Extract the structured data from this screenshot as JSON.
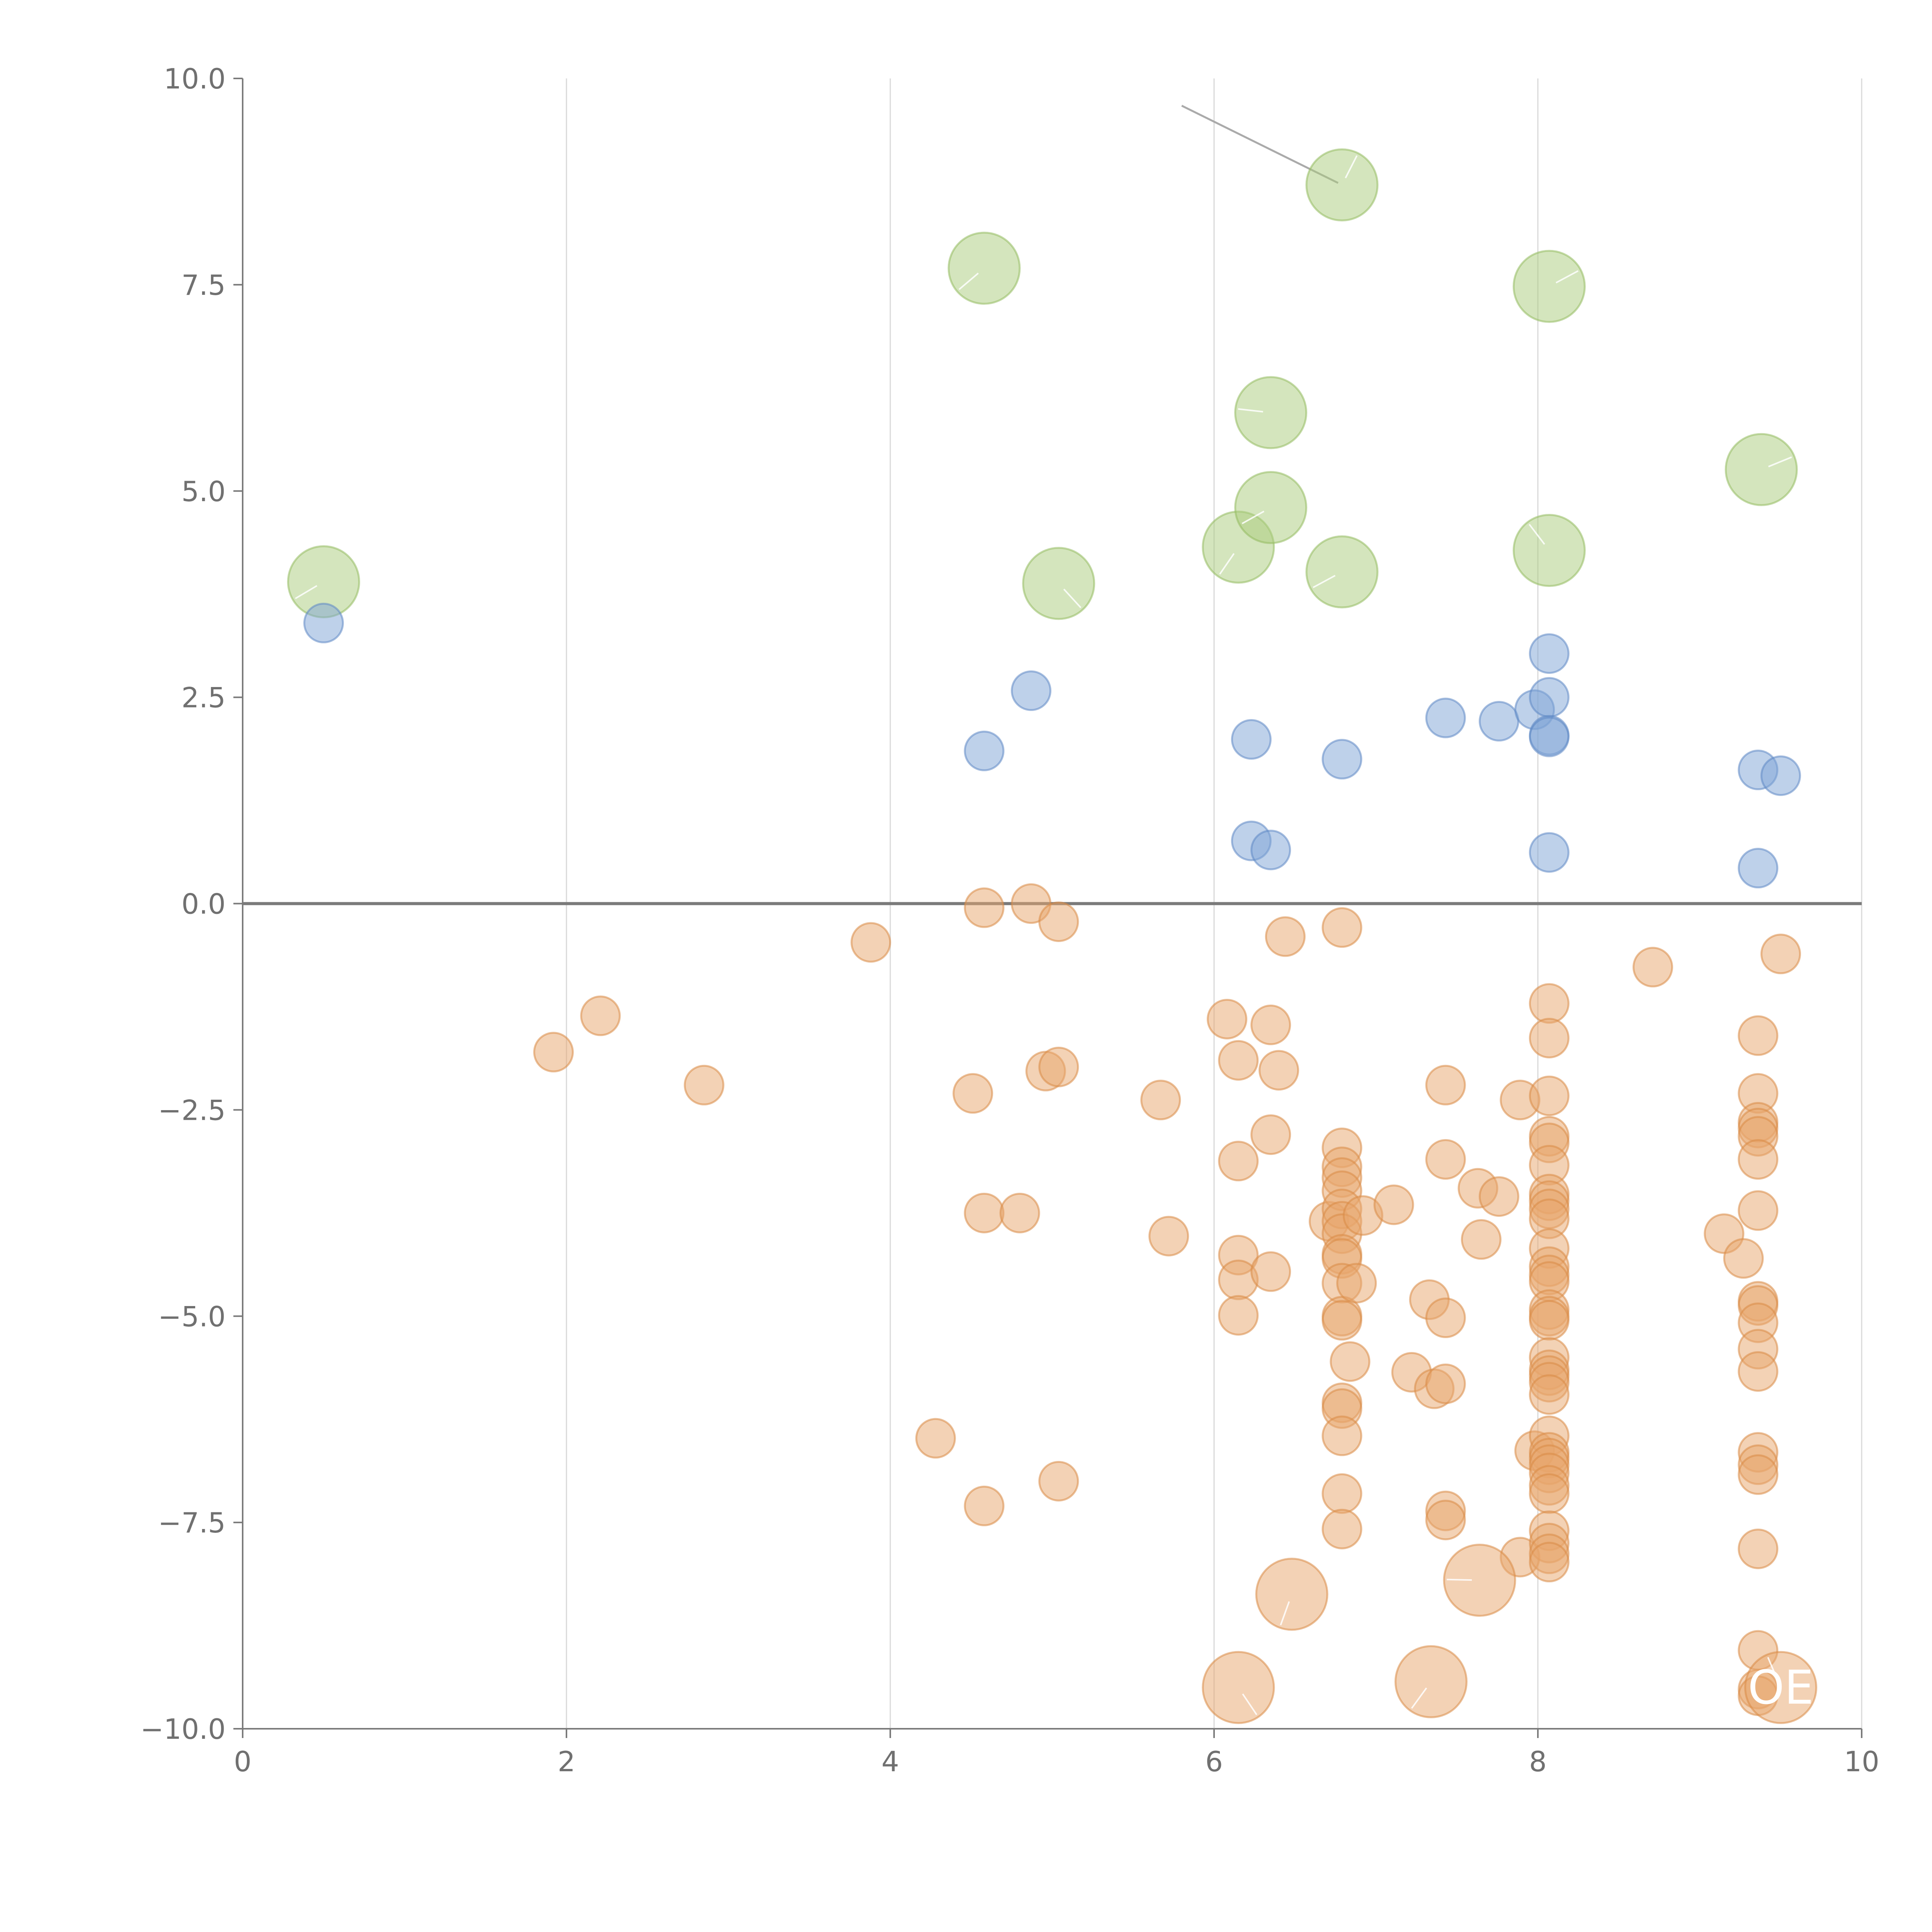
{
  "chart_data": {
    "type": "scatter",
    "title": "",
    "xlabel": "",
    "ylabel": "",
    "xlim": [
      0,
      10
    ],
    "ylim": [
      -10,
      10
    ],
    "x_ticks": [
      {
        "value": 0,
        "label": "0"
      },
      {
        "value": 2,
        "label": "2"
      },
      {
        "value": 4,
        "label": "4"
      },
      {
        "value": 6,
        "label": "6"
      },
      {
        "value": 8,
        "label": "8"
      },
      {
        "value": 10,
        "label": "10"
      }
    ],
    "y_ticks": [
      {
        "value": 10,
        "label": "10.0"
      },
      {
        "value": 7.5,
        "label": "7.5"
      },
      {
        "value": 5,
        "label": "5.0"
      },
      {
        "value": 2.5,
        "label": "2.5"
      },
      {
        "value": 0,
        "label": "0.0"
      },
      {
        "value": -2.5,
        "label": "−2.5"
      },
      {
        "value": -5,
        "label": "−5.0"
      },
      {
        "value": -7.5,
        "label": "−7.5"
      },
      {
        "value": -10,
        "label": "−10.0"
      }
    ],
    "grid": "vertical",
    "reference_line_y": 0,
    "series": [
      {
        "name": "green",
        "color": "#a9cc7b",
        "stroke": "#93bb61",
        "size": "large",
        "points": [
          [
            0.5,
            3.9
          ],
          [
            4.58,
            7.7
          ],
          [
            5.04,
            3.88
          ],
          [
            6.15,
            4.32
          ],
          [
            6.35,
            5.95
          ],
          [
            6.35,
            4.8
          ],
          [
            6.79,
            8.71
          ],
          [
            6.79,
            4.02
          ],
          [
            8.07,
            7.48
          ],
          [
            8.07,
            4.28
          ],
          [
            9.38,
            5.26
          ]
        ]
      },
      {
        "name": "blue",
        "color": "#7ea3d5",
        "stroke": "#5f88c4",
        "size": "small",
        "points": [
          [
            0.5,
            3.4
          ],
          [
            4.58,
            1.85
          ],
          [
            4.87,
            2.58
          ],
          [
            6.23,
            1.99
          ],
          [
            6.79,
            1.75
          ],
          [
            6.23,
            0.76
          ],
          [
            6.35,
            0.65
          ],
          [
            7.43,
            2.25
          ],
          [
            7.76,
            2.21
          ],
          [
            7.98,
            2.35
          ],
          [
            8.07,
            3.03
          ],
          [
            8.07,
            2.5
          ],
          [
            8.07,
            2.04
          ],
          [
            8.07,
            2.02
          ],
          [
            8.07,
            0.62
          ],
          [
            9.36,
            1.62
          ],
          [
            9.5,
            1.55
          ],
          [
            9.36,
            0.43
          ]
        ]
      },
      {
        "name": "orange",
        "color": "#e8a66b",
        "stroke": "#d98a45",
        "size": "small",
        "points": [
          [
            1.92,
            -1.8
          ],
          [
            2.21,
            -1.36
          ],
          [
            2.85,
            -2.2
          ],
          [
            3.88,
            -0.47
          ],
          [
            4.28,
            -6.48
          ],
          [
            4.51,
            -2.3
          ],
          [
            4.58,
            -0.05
          ],
          [
            4.58,
            -3.75
          ],
          [
            4.58,
            -7.3
          ],
          [
            4.8,
            -3.75
          ],
          [
            4.87,
            0.0
          ],
          [
            4.96,
            -2.03
          ],
          [
            5.04,
            -0.22
          ],
          [
            5.04,
            -1.98
          ],
          [
            5.04,
            -7.0
          ],
          [
            5.67,
            -2.38
          ],
          [
            5.72,
            -4.03
          ],
          [
            6.08,
            -1.4
          ],
          [
            6.15,
            -1.9
          ],
          [
            6.15,
            -3.12
          ],
          [
            6.15,
            -4.26
          ],
          [
            6.15,
            -4.56
          ],
          [
            6.15,
            -4.99
          ],
          [
            6.35,
            -1.47
          ],
          [
            6.35,
            -2.8
          ],
          [
            6.35,
            -4.46
          ],
          [
            6.4,
            -2.02
          ],
          [
            6.44,
            -0.4
          ],
          [
            6.71,
            -3.85
          ],
          [
            6.79,
            -0.29
          ],
          [
            6.79,
            -2.96
          ],
          [
            6.79,
            -3.19
          ],
          [
            6.79,
            -3.32
          ],
          [
            6.79,
            -3.48
          ],
          [
            6.79,
            -3.7
          ],
          [
            6.79,
            -3.85
          ],
          [
            6.79,
            -4.0
          ],
          [
            6.79,
            -4.25
          ],
          [
            6.79,
            -4.3
          ],
          [
            6.79,
            -4.6
          ],
          [
            6.79,
            -5.0
          ],
          [
            6.79,
            -5.05
          ],
          [
            6.79,
            -6.05
          ],
          [
            6.79,
            -6.12
          ],
          [
            6.79,
            -6.45
          ],
          [
            6.79,
            -7.15
          ],
          [
            6.79,
            -7.58
          ],
          [
            6.84,
            -5.55
          ],
          [
            6.88,
            -4.6
          ],
          [
            6.92,
            -3.78
          ],
          [
            7.11,
            -3.65
          ],
          [
            7.22,
            -5.68
          ],
          [
            7.33,
            -4.8
          ],
          [
            7.36,
            -5.88
          ],
          [
            7.43,
            -2.2
          ],
          [
            7.43,
            -3.1
          ],
          [
            7.43,
            -5.02
          ],
          [
            7.43,
            -5.82
          ],
          [
            7.43,
            -7.36
          ],
          [
            7.43,
            -7.47
          ],
          [
            7.63,
            -3.45
          ],
          [
            7.65,
            -4.07
          ],
          [
            7.76,
            -3.55
          ],
          [
            7.89,
            -2.38
          ],
          [
            7.89,
            -7.92
          ],
          [
            7.98,
            -6.63
          ],
          [
            8.07,
            -1.21
          ],
          [
            8.07,
            -1.63
          ],
          [
            8.07,
            -2.33
          ],
          [
            8.07,
            -2.82
          ],
          [
            8.07,
            -2.9
          ],
          [
            8.07,
            -3.17
          ],
          [
            8.07,
            -3.52
          ],
          [
            8.07,
            -3.6
          ],
          [
            8.07,
            -3.7
          ],
          [
            8.07,
            -3.82
          ],
          [
            8.07,
            -4.18
          ],
          [
            8.07,
            -4.4
          ],
          [
            8.07,
            -4.5
          ],
          [
            8.07,
            -4.58
          ],
          [
            8.07,
            -4.92
          ],
          [
            8.07,
            -5.0
          ],
          [
            8.07,
            -5.05
          ],
          [
            8.07,
            -5.5
          ],
          [
            8.07,
            -5.65
          ],
          [
            8.07,
            -5.72
          ],
          [
            8.07,
            -5.8
          ],
          [
            8.07,
            -5.95
          ],
          [
            8.07,
            -6.45
          ],
          [
            8.07,
            -6.65
          ],
          [
            8.07,
            -6.72
          ],
          [
            8.07,
            -6.8
          ],
          [
            8.07,
            -6.9
          ],
          [
            8.07,
            -7.05
          ],
          [
            8.07,
            -7.15
          ],
          [
            8.07,
            -7.6
          ],
          [
            8.07,
            -7.75
          ],
          [
            8.07,
            -7.88
          ],
          [
            8.07,
            -7.98
          ],
          [
            8.71,
            -0.77
          ],
          [
            9.15,
            -4.0
          ],
          [
            9.27,
            -4.3
          ],
          [
            9.36,
            -1.6
          ],
          [
            9.36,
            -2.3
          ],
          [
            9.36,
            -2.65
          ],
          [
            9.36,
            -2.72
          ],
          [
            9.36,
            -2.82
          ],
          [
            9.36,
            -3.1
          ],
          [
            9.36,
            -3.72
          ],
          [
            9.36,
            -4.82
          ],
          [
            9.36,
            -4.87
          ],
          [
            9.36,
            -5.08
          ],
          [
            9.36,
            -5.4
          ],
          [
            9.36,
            -5.67
          ],
          [
            9.36,
            -6.65
          ],
          [
            9.36,
            -6.8
          ],
          [
            9.36,
            -6.92
          ],
          [
            9.36,
            -7.82
          ],
          [
            9.36,
            -9.05
          ],
          [
            9.36,
            -9.52
          ],
          [
            9.36,
            -9.6
          ],
          [
            9.5,
            -0.61
          ]
        ]
      },
      {
        "name": "orange-large",
        "color": "#e8a66b",
        "stroke": "#d98a45",
        "size": "large",
        "points": [
          [
            6.48,
            -8.37
          ],
          [
            7.64,
            -8.2
          ],
          [
            6.15,
            -9.5
          ],
          [
            7.34,
            -9.43
          ],
          [
            9.5,
            -9.5
          ]
        ]
      }
    ],
    "annotations": [
      {
        "text": "OE",
        "x": 9.5,
        "y": -9.5
      }
    ]
  }
}
